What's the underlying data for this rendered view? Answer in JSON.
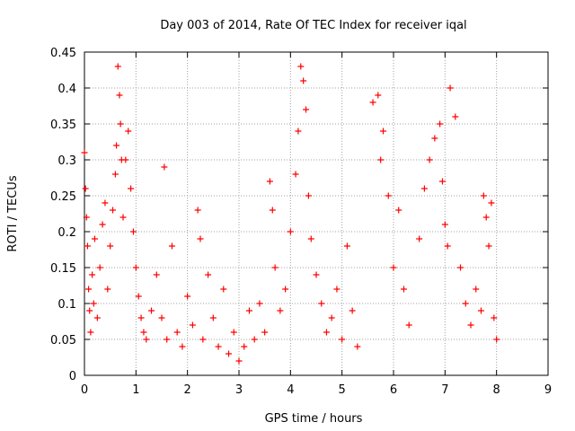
{
  "chart_data": {
    "type": "scatter",
    "title": "Day 003 of 2014, Rate Of TEC Index for receiver iqal",
    "xlabel": "GPS time / hours",
    "ylabel": "ROTI / TECUs",
    "xlim": [
      0,
      9
    ],
    "ylim": [
      0,
      0.45
    ],
    "x_ticks": [
      0,
      1,
      2,
      3,
      4,
      5,
      6,
      7,
      8,
      9
    ],
    "y_ticks": [
      0,
      0.05,
      0.1,
      0.15,
      0.2,
      0.25,
      0.3,
      0.35,
      0.4,
      0.45
    ],
    "x_tick_labels": [
      "0",
      "1",
      "2",
      "3",
      "4",
      "5",
      "6",
      "7",
      "8",
      "9"
    ],
    "y_tick_labels": [
      "0",
      "0.05",
      "0.1",
      "0.15",
      "0.2",
      "0.25",
      "0.3",
      "0.35",
      "0.4",
      "0.45"
    ],
    "grid": true,
    "marker": "+",
    "color": "#ff0000",
    "series": [
      {
        "name": "ROTI",
        "x": [
          0.0,
          0.02,
          0.04,
          0.06,
          0.08,
          0.1,
          0.12,
          0.15,
          0.18,
          0.2,
          0.25,
          0.3,
          0.35,
          0.4,
          0.45,
          0.5,
          0.55,
          0.6,
          0.62,
          0.65,
          0.68,
          0.7,
          0.72,
          0.75,
          0.8,
          0.85,
          0.9,
          0.95,
          1.0,
          1.05,
          1.1,
          1.15,
          1.2,
          1.3,
          1.4,
          1.5,
          1.55,
          1.6,
          1.7,
          1.8,
          1.9,
          2.0,
          2.1,
          2.2,
          2.25,
          2.3,
          2.4,
          2.5,
          2.6,
          2.7,
          2.8,
          2.9,
          3.0,
          3.1,
          3.2,
          3.3,
          3.4,
          3.5,
          3.6,
          3.65,
          3.7,
          3.8,
          3.9,
          4.0,
          4.1,
          4.15,
          4.2,
          4.25,
          4.3,
          4.35,
          4.4,
          4.5,
          4.6,
          4.7,
          4.8,
          4.9,
          5.0,
          5.1,
          5.2,
          5.3,
          5.6,
          5.7,
          5.75,
          5.8,
          5.9,
          6.0,
          6.1,
          6.2,
          6.3,
          6.5,
          6.6,
          6.7,
          6.8,
          6.9,
          6.95,
          7.0,
          7.05,
          7.1,
          7.2,
          7.3,
          7.4,
          7.5,
          7.6,
          7.7,
          7.75,
          7.8,
          7.85,
          7.9,
          7.95,
          8.0
        ],
        "y": [
          0.31,
          0.26,
          0.22,
          0.18,
          0.12,
          0.09,
          0.06,
          0.14,
          0.1,
          0.19,
          0.08,
          0.15,
          0.21,
          0.24,
          0.12,
          0.18,
          0.23,
          0.28,
          0.32,
          0.43,
          0.39,
          0.35,
          0.3,
          0.22,
          0.3,
          0.34,
          0.26,
          0.2,
          0.15,
          0.11,
          0.08,
          0.06,
          0.05,
          0.09,
          0.14,
          0.08,
          0.29,
          0.05,
          0.18,
          0.06,
          0.04,
          0.11,
          0.07,
          0.23,
          0.19,
          0.05,
          0.14,
          0.08,
          0.04,
          0.12,
          0.03,
          0.06,
          0.02,
          0.04,
          0.09,
          0.05,
          0.1,
          0.06,
          0.27,
          0.23,
          0.15,
          0.09,
          0.12,
          0.2,
          0.28,
          0.34,
          0.43,
          0.41,
          0.37,
          0.25,
          0.19,
          0.14,
          0.1,
          0.06,
          0.08,
          0.12,
          0.05,
          0.18,
          0.09,
          0.04,
          0.38,
          0.39,
          0.3,
          0.34,
          0.25,
          0.15,
          0.23,
          0.12,
          0.07,
          0.19,
          0.26,
          0.3,
          0.33,
          0.35,
          0.27,
          0.21,
          0.18,
          0.4,
          0.36,
          0.15,
          0.1,
          0.07,
          0.12,
          0.09,
          0.25,
          0.22,
          0.18,
          0.24,
          0.08,
          0.05
        ]
      }
    ]
  }
}
